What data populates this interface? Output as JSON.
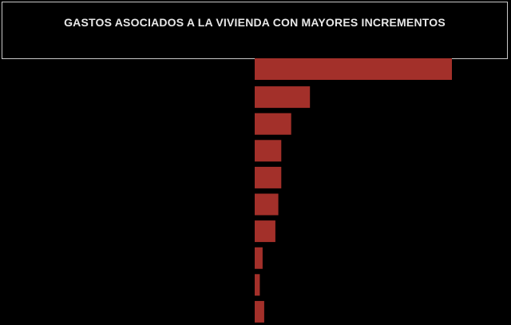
{
  "chart_data": {
    "type": "bar",
    "orientation": "horizontal",
    "title": "GASTOS ASOCIADOS A LA VIVIENDA CON MAYORES INCREMENTOS",
    "categories": [
      "",
      "",
      "",
      "",
      "",
      "",
      "",
      "",
      "",
      ""
    ],
    "values": [
      100,
      28,
      18.5,
      13.5,
      13.5,
      12,
      10.5,
      4,
      2.6,
      4.8
    ],
    "xlim": [
      0,
      100
    ],
    "grid": false,
    "legend": "none",
    "bar_color": "#a3302a",
    "background_color": "#000000"
  }
}
